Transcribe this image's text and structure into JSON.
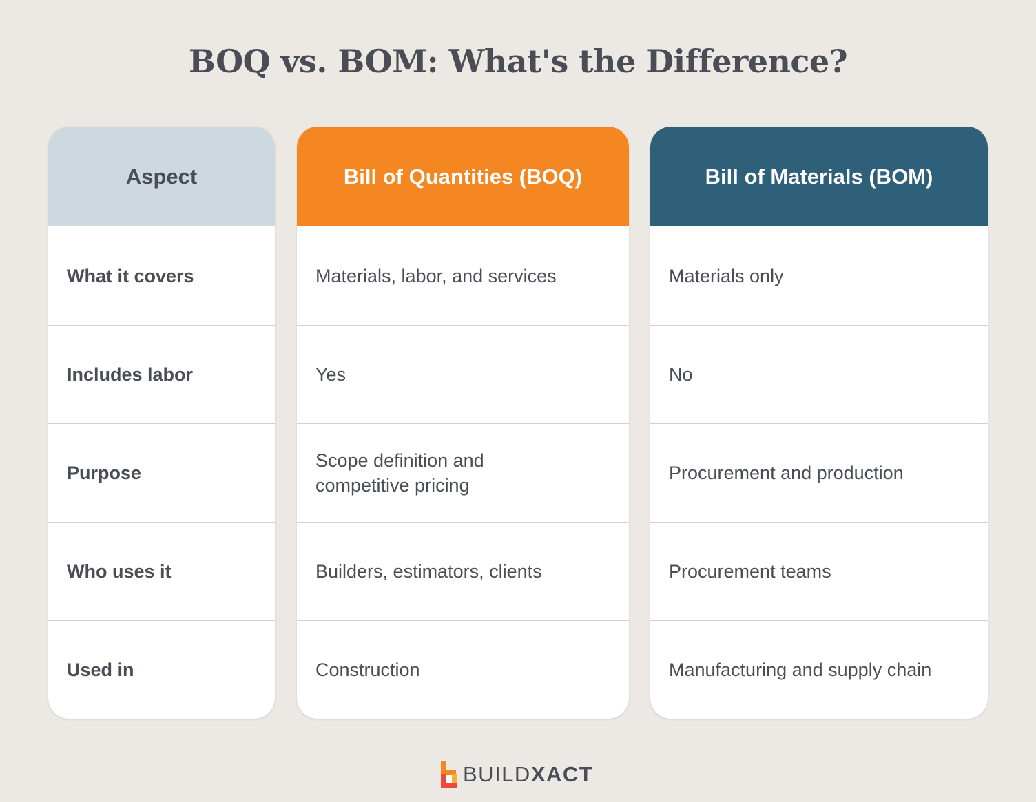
{
  "title": "BOQ vs. BOM: What's the Difference?",
  "colors": {
    "background": "#ece9e4",
    "aspect_header": "#cdd9de",
    "boq_header": "#f58723",
    "bom_header": "#2e6079",
    "text": "#4a4d55"
  },
  "table": {
    "headers": {
      "aspect": "Aspect",
      "boq": "Bill of Quantities (BOQ)",
      "bom": "Bill of Materials (BOM)"
    },
    "rows": [
      {
        "aspect": "What it covers",
        "boq": "Materials, labor, and services",
        "bom": "Materials only"
      },
      {
        "aspect": "Includes labor",
        "boq": "Yes",
        "bom": "No"
      },
      {
        "aspect": "Purpose",
        "boq": "Scope definition and competitive pricing",
        "bom": "Procurement and production"
      },
      {
        "aspect": "Who uses it",
        "boq": "Builders, estimators, clients",
        "bom": "Procurement teams"
      },
      {
        "aspect": "Used in",
        "boq": "Construction",
        "bom": "Manufacturing and supply chain"
      }
    ]
  },
  "logo": {
    "icon": "buildxact-b-logo-icon",
    "text_part1": "BUILD",
    "text_part2": "XACT"
  }
}
